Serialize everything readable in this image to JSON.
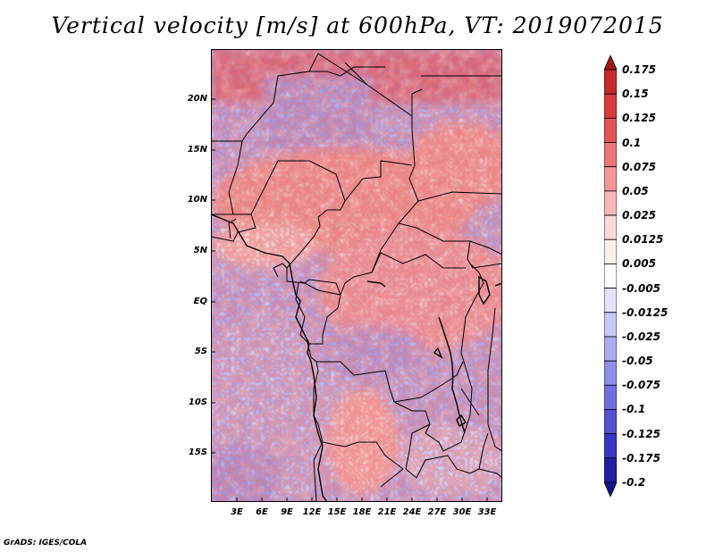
{
  "title": "Vertical velocity [m/s] at 600hPa, VT: 2019072015",
  "credit": "GrADS: IGES/COLA",
  "map": {
    "lat_labels": [
      "20N",
      "15N",
      "10N",
      "5N",
      "EQ",
      "5S",
      "10S",
      "15S"
    ],
    "lon_labels": [
      "3E",
      "6E",
      "9E",
      "12E",
      "15E",
      "18E",
      "21E",
      "24E",
      "27E",
      "30E",
      "33E"
    ]
  },
  "colorbar": {
    "labels": [
      "0.175",
      "0.15",
      "0.125",
      "0.1",
      "0.075",
      "0.05",
      "0.025",
      "0.0125",
      "0.005",
      "-0.005",
      "-0.0125",
      "-0.025",
      "-0.05",
      "-0.075",
      "-0.1",
      "-0.125",
      "-0.175",
      "-0.2"
    ],
    "colors": [
      "#a01818",
      "#c42a2a",
      "#d63b3b",
      "#e35555",
      "#ec7676",
      "#f29797",
      "#f7b8b8",
      "#fbd8d8",
      "#fdeeee",
      "#ffffff",
      "#e2e2fb",
      "#c8c8f6",
      "#ababf0",
      "#8e8ee8",
      "#6f6fdf",
      "#5252d2",
      "#3636c2",
      "#1f1fa4",
      "#14148a"
    ]
  }
}
